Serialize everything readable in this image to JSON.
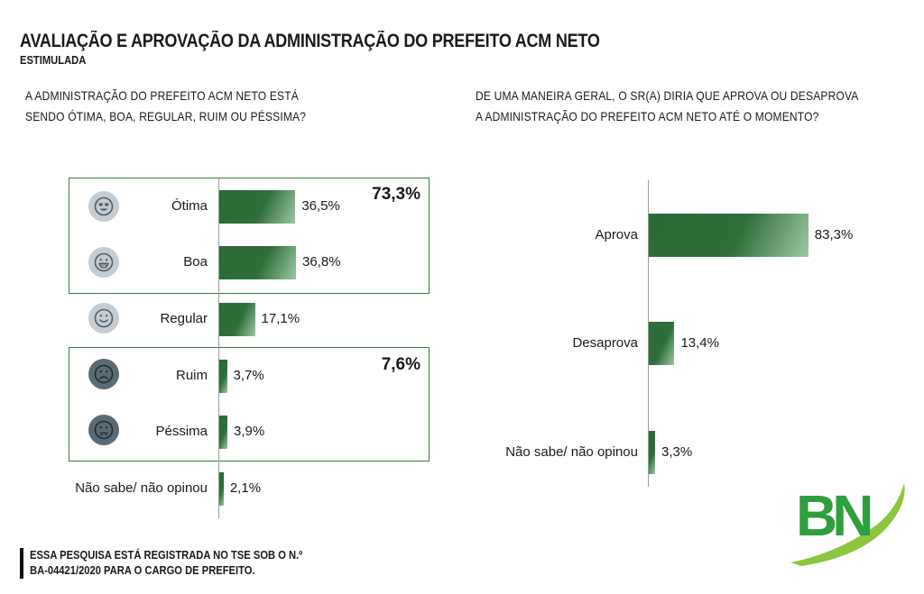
{
  "header": {
    "title": "AVALIAÇÃO E APROVAÇÃO DA ADMINISTRAÇÃO DO PREFEITO ACM NETO",
    "subtitle": "ESTIMULADA"
  },
  "left_question": {
    "line1": "A ADMINISTRAÇÃO DO PREFEITO ACM NETO ESTÁ",
    "line2": "SENDO ÓTIMA, BOA, REGULAR, RUIM OU PÉSSIMA?"
  },
  "right_question": {
    "line1": "DE UMA MANEIRA GERAL, O SR(A) DIRIA QUE APROVA OU DESAPROVA",
    "line2": "A ADMINISTRAÇÃO DO PREFEITO ACM NETO ATÉ O MOMENTO?"
  },
  "groups": {
    "positive_total": "73,3%",
    "negative_total": "7,6%"
  },
  "chart_data": [
    {
      "type": "bar",
      "orientation": "horizontal",
      "categories": [
        "Ótima",
        "Boa",
        "Regular",
        "Ruim",
        "Péssima",
        "Não sabe/ não opinou"
      ],
      "values": [
        36.5,
        36.8,
        17.1,
        3.7,
        3.9,
        2.1
      ],
      "labels": [
        "36,5%",
        "36,8%",
        "17,1%",
        "3,7%",
        "3,9%",
        "2,1%"
      ],
      "icons": [
        "heart-eyes-face-icon",
        "grin-face-icon",
        "smile-face-icon",
        "sad-face-icon",
        "neutral-face-icon",
        ""
      ],
      "group_totals": [
        {
          "categories": [
            "Ótima",
            "Boa"
          ],
          "label": "73,3%"
        },
        {
          "categories": [
            "Ruim",
            "Péssima"
          ],
          "label": "7,6%"
        }
      ],
      "xlim": [
        0,
        45
      ],
      "bar_color": "#2f6d3a"
    },
    {
      "type": "bar",
      "orientation": "horizontal",
      "categories": [
        "Aprova",
        "Desaprova",
        "Não sabe/ não opinou"
      ],
      "values": [
        83.3,
        13.4,
        3.3
      ],
      "labels": [
        "83,3%",
        "13,4%",
        "3,3%"
      ],
      "xlim": [
        0,
        90
      ],
      "bar_color": "#2f6d3a"
    }
  ],
  "footer": {
    "line1": "ESSA PESQUISA ESTÁ REGISTRADA NO TSE SOB O N.º",
    "line2": "BA-04421/2020 PARA O CARGO DE PREFEITO."
  },
  "logo": {
    "text": "BN",
    "green": "#2f9e3c",
    "accent": "#8cc63f"
  }
}
